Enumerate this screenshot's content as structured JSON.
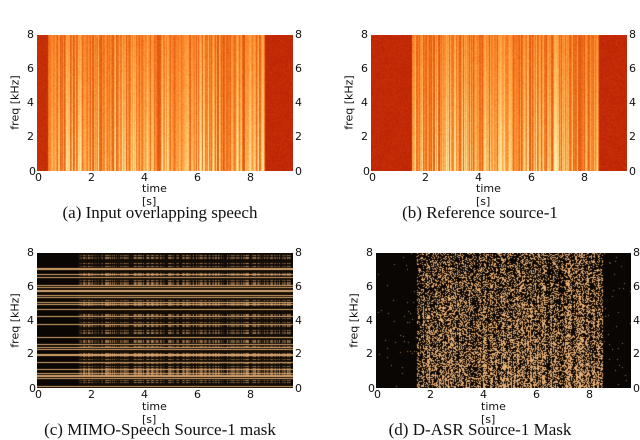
{
  "figure": {
    "panels": [
      {
        "id": "a",
        "caption": "(a) Input overlapping speech",
        "colormap": "hot",
        "xlabel": "time [s]",
        "ylabel": "freq [kHz]",
        "xticks": [
          "0",
          "2",
          "4",
          "6",
          "8"
        ],
        "yticks": [
          "0",
          "2",
          "4",
          "6",
          "8"
        ],
        "yticks_right": [
          "0",
          "2",
          "4",
          "6",
          "8"
        ]
      },
      {
        "id": "b",
        "caption": "(b) Reference source-1",
        "colormap": "hot",
        "xlabel": "time [s]",
        "ylabel": "freq [kHz]",
        "xticks": [
          "0",
          "2",
          "4",
          "6",
          "8"
        ],
        "yticks": [
          "0",
          "2",
          "4",
          "6",
          "8"
        ],
        "yticks_right": [
          "0",
          "2",
          "4",
          "6",
          "8"
        ]
      },
      {
        "id": "c",
        "caption": "(c) MIMO-Speech Source-1 mask",
        "colormap": "copper",
        "xlabel": "time [s]",
        "ylabel": "freq [kHz]",
        "xticks": [
          "0",
          "2",
          "4",
          "6",
          "8"
        ],
        "yticks": [
          "0",
          "2",
          "4",
          "6",
          "8"
        ],
        "yticks_right": [
          "0",
          "2",
          "4",
          "6",
          "8"
        ]
      },
      {
        "id": "d",
        "caption": "(d) D-ASR Source-1 Mask",
        "colormap": "copper",
        "xlabel": "time [s]",
        "ylabel": "freq [kHz]",
        "xticks": [
          "0",
          "2",
          "4",
          "6",
          "8"
        ],
        "yticks": [
          "0",
          "2",
          "4",
          "6",
          "8"
        ],
        "yticks_right": [
          "0",
          "2",
          "4",
          "6",
          "8"
        ]
      }
    ]
  },
  "chart_data": [
    {
      "type": "heatmap",
      "title": "(a) Input overlapping speech",
      "xlabel": "time [s]",
      "ylabel": "freq [kHz]",
      "xlim": [
        0,
        9.6
      ],
      "ylim": [
        0,
        8
      ],
      "description": "Spectrogram of mixed speech; energy spans ~0.4s to ~8.6s"
    },
    {
      "type": "heatmap",
      "title": "(b) Reference source-1",
      "xlabel": "time [s]",
      "ylabel": "freq [kHz]",
      "xlim": [
        0,
        9.6
      ],
      "ylim": [
        0,
        8
      ],
      "description": "Spectrogram of reference source; speech active ~1.5s to ~8.6s"
    },
    {
      "type": "heatmap",
      "title": "(c) MIMO-Speech Source-1 mask",
      "xlabel": "time [s]",
      "ylabel": "freq [kHz]",
      "xlim": [
        0,
        9.6
      ],
      "ylim": [
        0,
        8
      ],
      "description": "Mask with strong horizontal frequency banding, active ~1.5s onward"
    },
    {
      "type": "heatmap",
      "title": "(d) D-ASR Source-1 Mask",
      "xlabel": "time [s]",
      "ylabel": "freq [kHz]",
      "xlim": [
        0,
        9.6
      ],
      "ylim": [
        0,
        8
      ],
      "description": "Sparse time-frequency mask, active ~1.5s to ~8.6s"
    }
  ],
  "colors": {
    "hot_dark": "#b01a06",
    "hot_light": "#ffd89a",
    "copper_dark": "#050200",
    "copper_light": "#ffc080"
  }
}
